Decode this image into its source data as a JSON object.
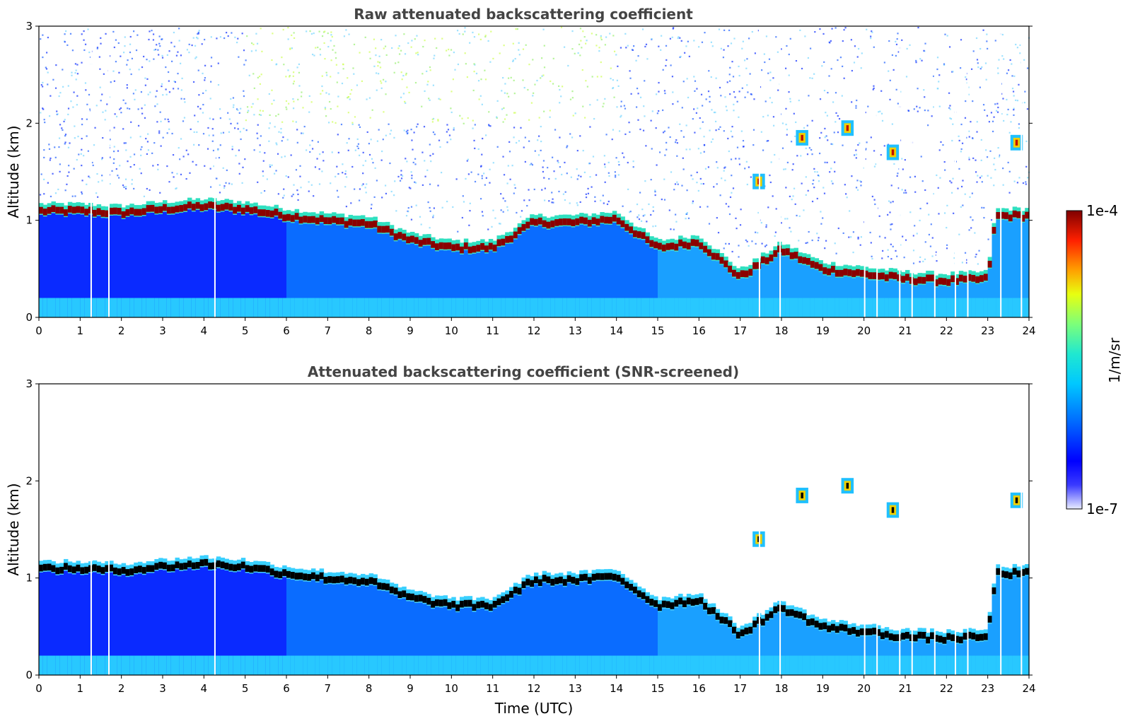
{
  "chart_data": [
    {
      "type": "heatmap",
      "title": "Raw attenuated backscattering coefficient",
      "xlabel": "",
      "ylabel": "Altitude (km)",
      "xlim": [
        0,
        24
      ],
      "ylim": [
        0,
        3
      ],
      "xticks": [
        "0",
        "1",
        "2",
        "3",
        "4",
        "5",
        "6",
        "7",
        "8",
        "9",
        "10",
        "11",
        "12",
        "13",
        "14",
        "15",
        "16",
        "17",
        "18",
        "19",
        "20",
        "21",
        "22",
        "23",
        "24"
      ],
      "yticks": [
        "0",
        "1",
        "2",
        "3"
      ],
      "boundary_layer_top_km": {
        "x": [
          0,
          1,
          2,
          3,
          4,
          5,
          6,
          7,
          8,
          9,
          10,
          11,
          12,
          13,
          14,
          15,
          16,
          17,
          18,
          19,
          20,
          21,
          22,
          23,
          23.2,
          24
        ],
        "y": [
          1.1,
          1.1,
          1.08,
          1.12,
          1.15,
          1.12,
          1.05,
          1.0,
          0.97,
          0.8,
          0.72,
          0.72,
          0.98,
          0.98,
          1.02,
          0.72,
          0.78,
          0.42,
          0.7,
          0.5,
          0.45,
          0.4,
          0.38,
          0.4,
          1.05,
          1.05
        ]
      },
      "cloud_patches": [
        {
          "t": 17.45,
          "alt": 1.4
        },
        {
          "t": 18.5,
          "alt": 1.85
        },
        {
          "t": 19.6,
          "alt": 1.95
        },
        {
          "t": 20.7,
          "alt": 1.7
        },
        {
          "t": 23.7,
          "alt": 1.8
        }
      ],
      "data_gaps_utc": [
        1.25,
        1.68,
        4.25,
        17.45,
        17.95,
        20.0,
        20.3,
        20.85,
        21.15,
        21.7,
        22.2,
        22.5,
        23.3,
        23.8
      ]
    },
    {
      "type": "heatmap",
      "title": "Attenuated backscattering coefficient (SNR-screened)",
      "xlabel": "Time (UTC)",
      "ylabel": "Altitude (km)",
      "xlim": [
        0,
        24
      ],
      "ylim": [
        0,
        3
      ],
      "xticks": [
        "0",
        "1",
        "2",
        "3",
        "4",
        "5",
        "6",
        "7",
        "8",
        "9",
        "10",
        "11",
        "12",
        "13",
        "14",
        "15",
        "16",
        "17",
        "18",
        "19",
        "20",
        "21",
        "22",
        "23",
        "24"
      ],
      "yticks": [
        "0",
        "1",
        "2",
        "3"
      ]
    }
  ],
  "colorbar": {
    "label": "1/m/sr",
    "max_label": "1e-4",
    "min_label": "1e-7",
    "colormap": "jet",
    "scale": "log"
  }
}
